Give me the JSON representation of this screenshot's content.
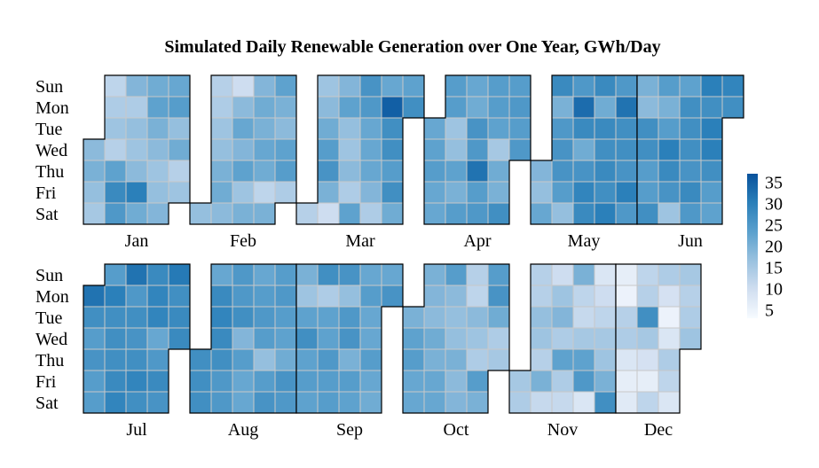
{
  "chart_data": {
    "type": "heatmap",
    "title": "Simulated Daily Renewable Generation over One Year, GWh/Day",
    "weekday_labels": [
      "Sun",
      "Mon",
      "Tue",
      "Wed",
      "Thu",
      "Fri",
      "Sat"
    ],
    "months": [
      {
        "name": "Jan",
        "first_weekday": 3,
        "values": [
          18,
          20,
          17,
          15,
          12,
          14,
          16,
          13,
          23,
          28,
          25,
          19,
          14,
          17,
          16,
          18,
          30,
          21,
          21,
          23,
          20,
          18,
          16,
          17,
          19,
          22,
          24,
          17,
          21,
          13,
          16
        ]
      },
      {
        "name": "Feb",
        "first_weekday": 6,
        "values": [
          17,
          13,
          14,
          16,
          17,
          20,
          21,
          18,
          10,
          18,
          22,
          19,
          23,
          16,
          20,
          19,
          21,
          20,
          22,
          21,
          12,
          20,
          23,
          20,
          18,
          23,
          24,
          14
        ]
      },
      {
        "name": "Mar",
        "first_weekday": 6,
        "values": [
          13,
          16,
          18,
          21,
          24,
          26,
          20,
          10,
          19,
          23,
          17,
          16,
          18,
          14,
          23,
          26,
          25,
          22,
          22,
          22,
          19,
          14,
          22,
          35,
          27,
          27,
          24,
          27,
          21,
          23,
          27
        ]
      },
      {
        "name": "Apr",
        "first_weekday": 2,
        "values": [
          22,
          23,
          24,
          22,
          22,
          24,
          24,
          16,
          17,
          23,
          20,
          24,
          22,
          21,
          26,
          25,
          32,
          24,
          25,
          24,
          24,
          23,
          15,
          21,
          20,
          27,
          24,
          25,
          24,
          25
        ]
      },
      {
        "name": "May",
        "first_weekday": 4,
        "values": [
          19,
          17,
          22,
          28,
          20,
          25,
          26,
          26,
          24,
          17,
          25,
          33,
          28,
          21,
          26,
          29,
          28,
          28,
          21,
          28,
          27,
          28,
          27,
          30,
          25,
          32,
          27,
          27,
          26,
          30,
          25
        ]
      },
      {
        "name": "Jun",
        "first_weekday": 0,
        "values": [
          20,
          18,
          27,
          27,
          24,
          24,
          27,
          24,
          20,
          24,
          30,
          28,
          26,
          16,
          23,
          27,
          27,
          27,
          26,
          28,
          25,
          30,
          27,
          30,
          30,
          27,
          24,
          23,
          29,
          27
        ]
      },
      {
        "name": "Jul",
        "first_weekday": 1,
        "values": [
          32,
          27,
          24,
          26,
          24,
          24,
          24,
          30,
          27,
          27,
          27,
          28,
          29,
          32,
          25,
          27,
          26,
          27,
          29,
          27,
          28,
          29,
          29,
          22,
          25,
          28,
          26,
          31,
          27,
          28,
          28
        ]
      },
      {
        "name": "Aug",
        "first_weekday": 4,
        "values": [
          27,
          27,
          27,
          22,
          28,
          29,
          28,
          27,
          25,
          25,
          25,
          25,
          27,
          19,
          24,
          22,
          22,
          22,
          24,
          25,
          24,
          17,
          24,
          26,
          24,
          25,
          24,
          23,
          21,
          26,
          25
        ]
      },
      {
        "name": "Sep",
        "first_weekday": 0,
        "values": [
          20,
          16,
          23,
          27,
          23,
          24,
          23,
          27,
          14,
          23,
          23,
          25,
          24,
          24,
          26,
          17,
          25,
          26,
          20,
          24,
          23,
          22,
          24,
          22,
          22,
          24,
          22,
          21,
          22,
          26
        ]
      },
      {
        "name": "Oct",
        "first_weekday": 2,
        "values": [
          20,
          23,
          24,
          22,
          22,
          20,
          19,
          18,
          21,
          20,
          22,
          22,
          24,
          18,
          17,
          17,
          20,
          18,
          19,
          13,
          12,
          18,
          16,
          14,
          24,
          20,
          24,
          26,
          21,
          14,
          15
        ]
      },
      {
        "name": "Nov",
        "first_weekday": 5,
        "values": [
          15,
          14,
          13,
          13,
          17,
          16,
          13,
          20,
          11,
          10,
          16,
          19,
          14,
          23,
          14,
          11,
          20,
          12,
          11,
          15,
          23,
          25,
          8,
          8,
          10,
          12,
          15,
          16,
          20,
          27
        ]
      },
      {
        "name": "Dec",
        "first_weekday": 0,
        "values": [
          6,
          5,
          13,
          14,
          8,
          6,
          7,
          12,
          13,
          27,
          15,
          9,
          6,
          12,
          14,
          9,
          5,
          8,
          14,
          12,
          8,
          15,
          13,
          14,
          16
        ]
      }
    ],
    "colorbar": {
      "ticks": [
        5,
        10,
        15,
        20,
        25,
        30,
        35
      ],
      "min": 3,
      "max": 37,
      "colors": [
        "#f7fbff",
        "#d0def0",
        "#99c1df",
        "#5aa0cd",
        "#2a7fb9",
        "#08529c"
      ]
    },
    "grid": false,
    "legend": "colorbar right"
  }
}
